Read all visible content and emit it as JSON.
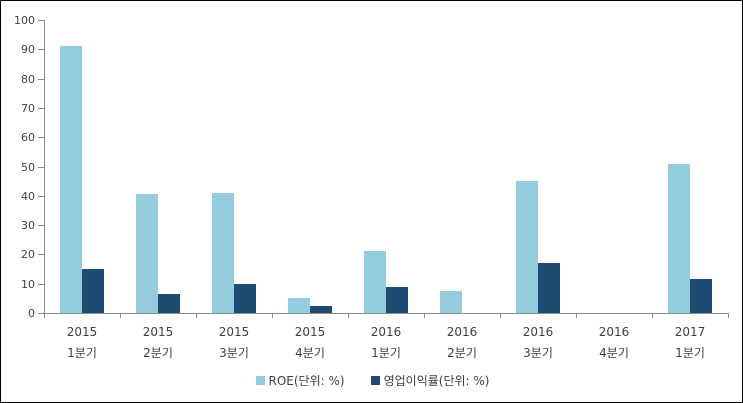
{
  "chart_data": {
    "type": "bar",
    "categories": [
      {
        "line1": "2015",
        "line2": "1분기"
      },
      {
        "line1": "2015",
        "line2": "2분기"
      },
      {
        "line1": "2015",
        "line2": "3분기"
      },
      {
        "line1": "2015",
        "line2": "4분기"
      },
      {
        "line1": "2016",
        "line2": "1분기"
      },
      {
        "line1": "2016",
        "line2": "2분기"
      },
      {
        "line1": "2016",
        "line2": "3분기"
      },
      {
        "line1": "2016",
        "line2": "4분기"
      },
      {
        "line1": "2017",
        "line2": "1분기"
      }
    ],
    "series": [
      {
        "name": "ROE(단위: %)",
        "color": "#93cddd",
        "values": [
          91,
          40.5,
          41,
          5,
          21,
          7.5,
          45,
          0,
          51
        ]
      },
      {
        "name": "영업이익률(단위: %)",
        "color": "#1f4a72",
        "values": [
          15,
          6.5,
          10,
          2.5,
          9,
          0,
          17,
          0,
          11.5
        ]
      }
    ],
    "title": "",
    "xlabel": "",
    "ylabel": "",
    "ylim": [
      0,
      100
    ],
    "yticks": [
      0,
      10,
      20,
      30,
      40,
      50,
      60,
      70,
      80,
      90,
      100
    ],
    "grid": false,
    "legend_position": "bottom",
    "axis_color": "#8c8c8c"
  }
}
